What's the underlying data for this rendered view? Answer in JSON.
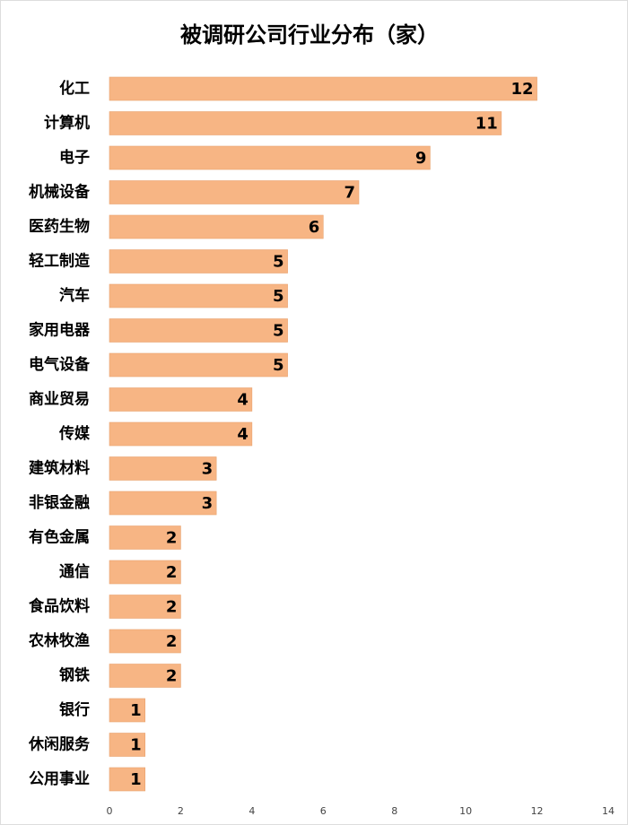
{
  "chart_data": {
    "type": "bar",
    "orientation": "horizontal",
    "title": "被调研公司行业分布（家）",
    "categories": [
      "化工",
      "计算机",
      "电子",
      "机械设备",
      "医药生物",
      "轻工制造",
      "汽车",
      "家用电器",
      "电气设备",
      "商业贸易",
      "传媒",
      "建筑材料",
      "非银金融",
      "有色金属",
      "通信",
      "食品饮料",
      "农林牧渔",
      "钢铁",
      "银行",
      "休闲服务",
      "公用事业"
    ],
    "values": [
      12,
      11,
      9,
      7,
      6,
      5,
      5,
      5,
      5,
      4,
      4,
      3,
      3,
      2,
      2,
      2,
      2,
      2,
      1,
      1,
      1
    ],
    "color": "#f7b584",
    "xlim": [
      0,
      14
    ],
    "xticks": [
      0,
      2,
      4,
      6,
      8,
      10,
      12,
      14
    ]
  }
}
